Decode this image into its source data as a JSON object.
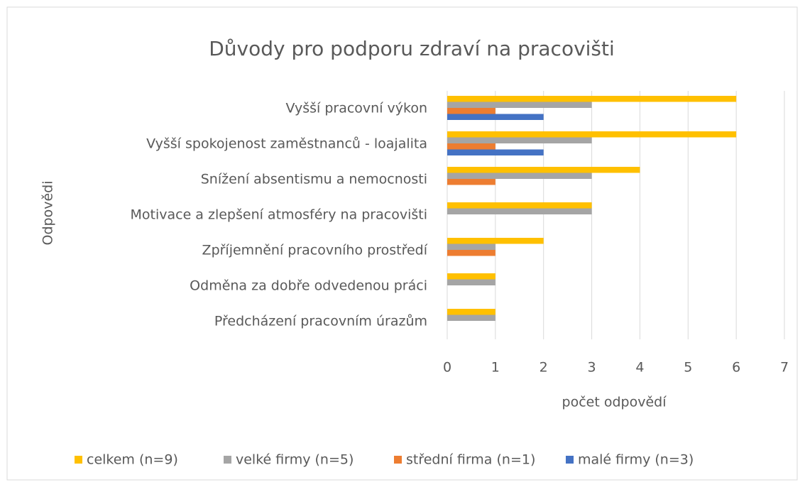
{
  "chart_data": {
    "type": "bar",
    "orientation": "horizontal",
    "title": "Důvody pro podporu zdraví na pracovišti",
    "x_label": "počet odpovědí",
    "y_label": "Odpovědi",
    "categories": [
      "Vyšší pracovní výkon",
      "Vyšší spokojenost zaměstnanců - loajalita",
      "Snížení absentismu a nemocnosti",
      "Motivace a zlepšení atmosféry na pracovišti",
      "Zpříjemnění pracovního prostředí",
      "Odměna za dobře odvedenou práci",
      "Předcházení pracovním úrazům"
    ],
    "series": [
      {
        "name": "celkem (n=9)",
        "color": "#FFC000",
        "values": [
          6,
          6,
          4,
          3,
          2,
          1,
          1
        ]
      },
      {
        "name": "velké firmy (n=5)",
        "color": "#A5A5A5",
        "values": [
          3,
          3,
          3,
          3,
          1,
          1,
          1
        ]
      },
      {
        "name": "střední firma (n=1)",
        "color": "#ED7D31",
        "values": [
          1,
          1,
          1,
          0,
          1,
          0,
          0
        ]
      },
      {
        "name": "malé firmy (n=3)",
        "color": "#4472C4",
        "values": [
          2,
          2,
          0,
          0,
          0,
          0,
          0
        ]
      }
    ],
    "xlim": [
      0,
      7
    ],
    "xticks": [
      0,
      1,
      2,
      3,
      4,
      5,
      6,
      7
    ],
    "grid": true,
    "legend": "bottom"
  }
}
